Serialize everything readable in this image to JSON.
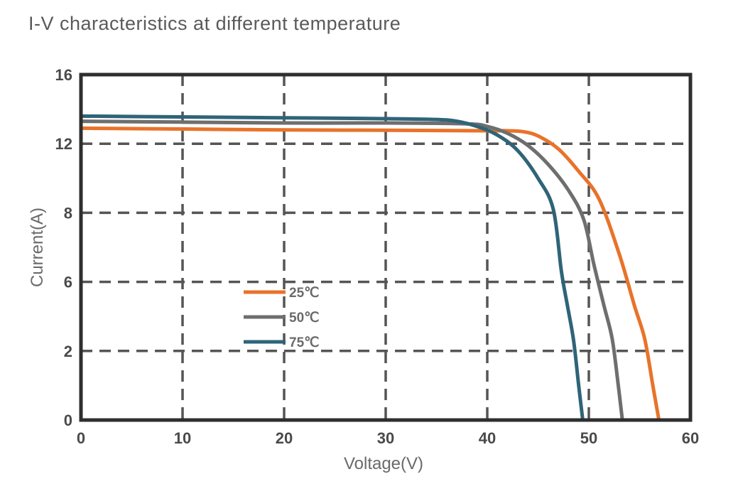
{
  "chart_data": {
    "type": "line",
    "title": "I-V characteristics at different temperature",
    "xlabel": "Voltage(V)",
    "ylabel": "Current(A)",
    "xlim": [
      0,
      60
    ],
    "x_ticks": [
      0,
      10,
      20,
      30,
      40,
      50,
      60
    ],
    "x_tick_labels": [
      "0",
      "10",
      "20",
      "30",
      "40",
      "50",
      "60"
    ],
    "y_ticks": [
      0,
      2,
      6,
      8,
      12,
      16
    ],
    "y_tick_labels": [
      "0",
      "2",
      "6",
      "8",
      "12",
      "16"
    ],
    "grid": true,
    "legend_position": "center-left",
    "series": [
      {
        "name": "25℃",
        "color": "#e8732a",
        "points": [
          [
            0,
            12.9
          ],
          [
            10,
            12.85
          ],
          [
            20,
            12.8
          ],
          [
            30,
            12.78
          ],
          [
            40,
            12.75
          ],
          [
            42,
            12.75
          ],
          [
            43.5,
            12.7
          ],
          [
            45,
            12.45
          ],
          [
            47,
            11.7
          ],
          [
            49,
            10.4
          ],
          [
            51,
            8.8
          ],
          [
            53,
            6.8
          ],
          [
            54.5,
            4.6
          ],
          [
            55.5,
            2.7
          ],
          [
            56.3,
            1.0
          ],
          [
            56.9,
            0
          ]
        ]
      },
      {
        "name": "50℃",
        "color": "#6e6e6e",
        "points": [
          [
            0,
            13.3
          ],
          [
            10,
            13.25
          ],
          [
            20,
            13.2
          ],
          [
            30,
            13.2
          ],
          [
            38,
            13.15
          ],
          [
            40,
            13.0
          ],
          [
            42,
            12.6
          ],
          [
            44,
            11.9
          ],
          [
            46,
            10.8
          ],
          [
            48,
            9.3
          ],
          [
            49.5,
            7.8
          ],
          [
            50.5,
            6.5
          ],
          [
            51.5,
            4.6
          ],
          [
            52.3,
            2.7
          ],
          [
            52.9,
            1.0
          ],
          [
            53.3,
            0
          ]
        ]
      },
      {
        "name": "75℃",
        "color": "#2f6478",
        "points": [
          [
            0,
            13.6
          ],
          [
            10,
            13.55
          ],
          [
            20,
            13.5
          ],
          [
            30,
            13.45
          ],
          [
            35,
            13.4
          ],
          [
            37,
            13.3
          ],
          [
            39,
            13.0
          ],
          [
            41,
            12.5
          ],
          [
            43,
            11.6
          ],
          [
            45,
            10.0
          ],
          [
            46.5,
            8.2
          ],
          [
            47.3,
            6.3
          ],
          [
            47.9,
            4.6
          ],
          [
            48.5,
            2.6
          ],
          [
            49.0,
            1.0
          ],
          [
            49.4,
            0
          ]
        ]
      }
    ]
  }
}
